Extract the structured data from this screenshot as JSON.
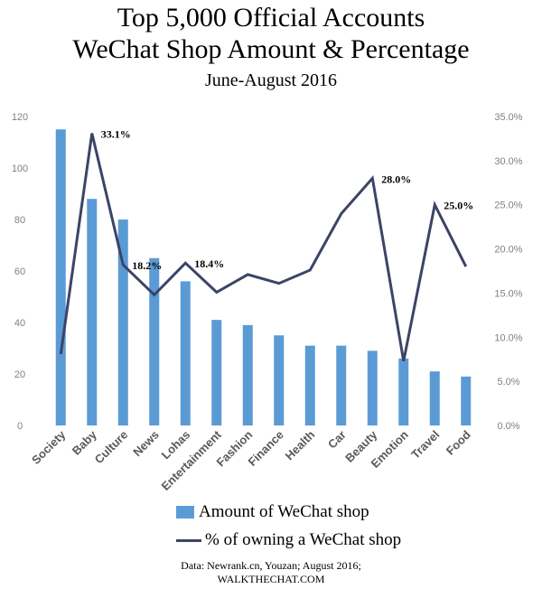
{
  "title_line_1": "Top 5,000 Official Accounts",
  "title_line_2": "WeChat Shop Amount & Percentage",
  "subtitle": "June-August 2016",
  "legend": {
    "bar_label": "Amount of WeChat shop",
    "line_label": "% of owning a WeChat shop"
  },
  "source_line_1": "Data: Newrank.cn, Youzan; August 2016;",
  "source_line_2": "WALKTHECHAT.COM",
  "colors": {
    "bar": "#5b9bd5",
    "line": "#3c4466",
    "axis_text": "#7f7f7f",
    "category_text": "#595959"
  },
  "chart_data": {
    "type": "bar",
    "categories": [
      "Society",
      "Baby",
      "Culture",
      "News",
      "Lohas",
      "Entertainment",
      "Fashion",
      "Finance",
      "Health",
      "Car",
      "Beauty",
      "Emotion",
      "Travel",
      "Food"
    ],
    "series": [
      {
        "name": "Amount of WeChat shop",
        "type": "bar",
        "axis": "left",
        "values": [
          115,
          88,
          80,
          65,
          56,
          41,
          39,
          35,
          31,
          31,
          29,
          26,
          21,
          19
        ]
      },
      {
        "name": "% of owning a WeChat shop",
        "type": "line",
        "axis": "right",
        "values": [
          8.1,
          33.1,
          18.2,
          14.8,
          18.4,
          15.1,
          17.1,
          16.1,
          17.6,
          24.0,
          28.0,
          7.3,
          25.0,
          18.0
        ]
      }
    ],
    "data_labels": [
      {
        "category": "Baby",
        "text": "33.1%"
      },
      {
        "category": "Culture",
        "text": "18.2%"
      },
      {
        "category": "Lohas",
        "text": "18.4%"
      },
      {
        "category": "Beauty",
        "text": "28.0%"
      },
      {
        "category": "Travel",
        "text": "25.0%"
      }
    ],
    "y_left": {
      "min": 0,
      "max": 120,
      "ticks": [
        0,
        20,
        40,
        60,
        80,
        100,
        120
      ],
      "tick_labels": [
        "0",
        "20",
        "40",
        "60",
        "80",
        "100",
        "120"
      ]
    },
    "y_right": {
      "min": 0,
      "max": 35,
      "ticks": [
        0,
        5,
        10,
        15,
        20,
        25,
        30,
        35
      ],
      "tick_labels": [
        "0.0%",
        "5.0%",
        "10.0%",
        "15.0%",
        "20.0%",
        "25.0%",
        "30.0%",
        "35.0%"
      ]
    },
    "grid": false,
    "legend_position": "bottom"
  }
}
